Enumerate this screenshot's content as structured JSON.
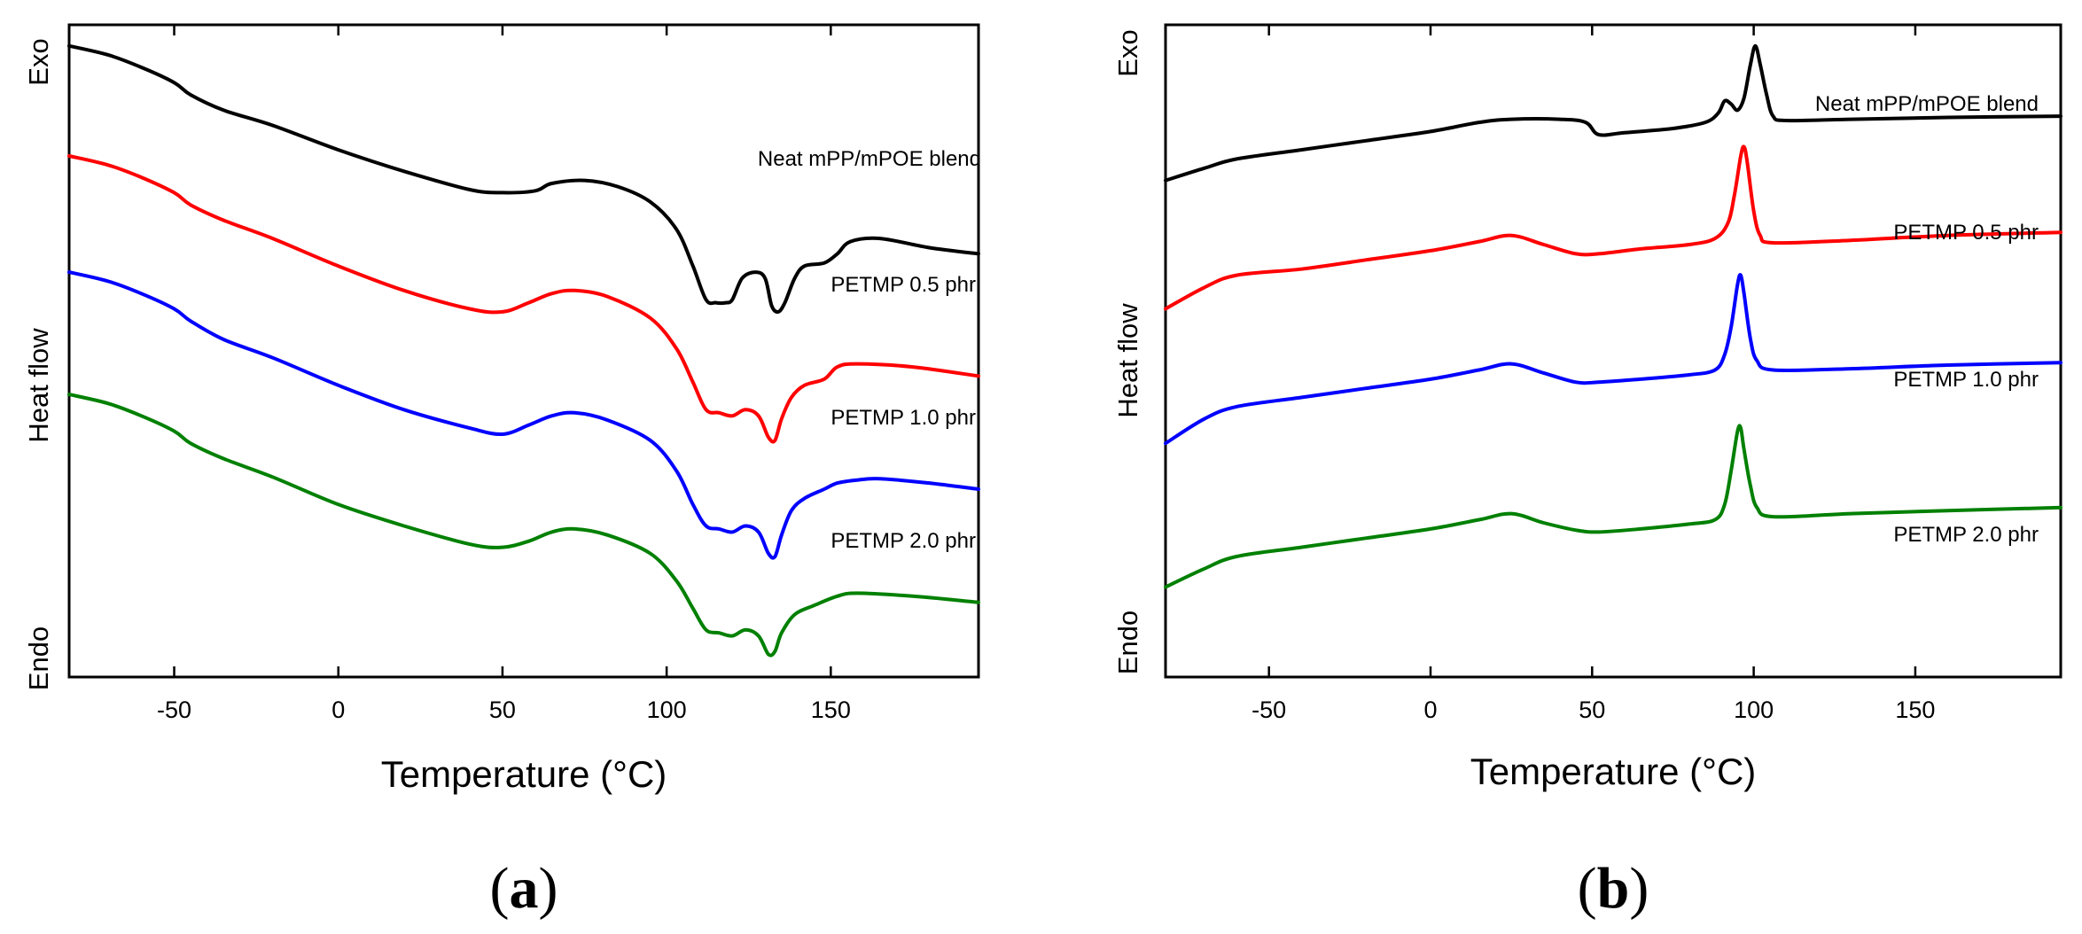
{
  "chart_data": [
    {
      "panel": "a",
      "type": "line",
      "xlabel": "Temperature (°C)",
      "xlim": [
        -82,
        195
      ],
      "xticks": [
        -50,
        0,
        50,
        100,
        150
      ],
      "ylabel": "Heat flow",
      "ylabel_top": "Exo",
      "ylabel_bottom": "Endo",
      "yticks_shown": false,
      "ylim": [
        0,
        100
      ],
      "series": [
        {
          "name": "Neat mPP/mPOE blend",
          "color": "#000000",
          "points": [
            [
              -82,
              98
            ],
            [
              -70,
              96.5
            ],
            [
              -60,
              94.5
            ],
            [
              -50,
              92
            ],
            [
              -45,
              90
            ],
            [
              -35,
              87.5
            ],
            [
              -20,
              85
            ],
            [
              0,
              81
            ],
            [
              20,
              77.5
            ],
            [
              40,
              74.5
            ],
            [
              50,
              74
            ],
            [
              60,
              74.3
            ],
            [
              65,
              75.5
            ],
            [
              75,
              76
            ],
            [
              85,
              75
            ],
            [
              95,
              72.5
            ],
            [
              103,
              68
            ],
            [
              108,
              62
            ],
            [
              112,
              56.5
            ],
            [
              115,
              56
            ],
            [
              118,
              56
            ],
            [
              120,
              56.5
            ],
            [
              123,
              60
            ],
            [
              127,
              61
            ],
            [
              130,
              60
            ],
            [
              132,
              55.5
            ],
            [
              134,
              54.5
            ],
            [
              136,
              56
            ],
            [
              139,
              60
            ],
            [
              142,
              62
            ],
            [
              148,
              62.5
            ],
            [
              152,
              64
            ],
            [
              156,
              66
            ],
            [
              165,
              66.5
            ],
            [
              180,
              65
            ],
            [
              195,
              64
            ]
          ]
        },
        {
          "name": "PETMP 0.5 phr",
          "color": "#ff0000",
          "points": [
            [
              -82,
              80
            ],
            [
              -70,
              78.5
            ],
            [
              -60,
              76.5
            ],
            [
              -50,
              74
            ],
            [
              -45,
              72
            ],
            [
              -35,
              69.5
            ],
            [
              -20,
              66.5
            ],
            [
              0,
              62
            ],
            [
              20,
              58
            ],
            [
              40,
              55
            ],
            [
              50,
              54.5
            ],
            [
              58,
              56
            ],
            [
              65,
              57.5
            ],
            [
              72,
              58
            ],
            [
              82,
              57
            ],
            [
              95,
              53.5
            ],
            [
              103,
              48.5
            ],
            [
              108,
              43
            ],
            [
              112,
              38.5
            ],
            [
              116,
              38
            ],
            [
              120,
              37.5
            ],
            [
              124,
              38.5
            ],
            [
              128,
              37.5
            ],
            [
              131,
              34
            ],
            [
              133,
              33.5
            ],
            [
              135,
              37
            ],
            [
              138,
              40.5
            ],
            [
              142,
              42.5
            ],
            [
              148,
              43.5
            ],
            [
              152,
              45.5
            ],
            [
              158,
              46
            ],
            [
              175,
              45.5
            ],
            [
              195,
              44
            ]
          ]
        },
        {
          "name": "PETMP 1.0 phr",
          "color": "#0000ff",
          "points": [
            [
              -82,
              61
            ],
            [
              -70,
              59.5
            ],
            [
              -60,
              57.5
            ],
            [
              -50,
              55
            ],
            [
              -45,
              53
            ],
            [
              -35,
              50
            ],
            [
              -20,
              47
            ],
            [
              0,
              42.5
            ],
            [
              20,
              38.5
            ],
            [
              40,
              35.5
            ],
            [
              50,
              34.5
            ],
            [
              58,
              36
            ],
            [
              65,
              37.5
            ],
            [
              72,
              38
            ],
            [
              82,
              36.8
            ],
            [
              95,
              33.5
            ],
            [
              103,
              28.5
            ],
            [
              108,
              23
            ],
            [
              112,
              19.5
            ],
            [
              116,
              19
            ],
            [
              120,
              18.5
            ],
            [
              124,
              19.5
            ],
            [
              128,
              18.5
            ],
            [
              131,
              15
            ],
            [
              133,
              14.5
            ],
            [
              135,
              18
            ],
            [
              138,
              22
            ],
            [
              142,
              24
            ],
            [
              148,
              25.5
            ],
            [
              152,
              26.5
            ],
            [
              158,
              27
            ],
            [
              165,
              27.2
            ],
            [
              180,
              26.5
            ],
            [
              195,
              25.5
            ]
          ]
        },
        {
          "name": "PETMP 2.0 phr",
          "color": "#008000",
          "points": [
            [
              -82,
              41
            ],
            [
              -70,
              39.5
            ],
            [
              -60,
              37.5
            ],
            [
              -50,
              35
            ],
            [
              -45,
              33
            ],
            [
              -35,
              30.5
            ],
            [
              -20,
              27.5
            ],
            [
              0,
              23
            ],
            [
              20,
              19.5
            ],
            [
              40,
              16.5
            ],
            [
              50,
              16
            ],
            [
              58,
              17
            ],
            [
              65,
              18.5
            ],
            [
              72,
              19
            ],
            [
              82,
              18
            ],
            [
              95,
              15
            ],
            [
              103,
              10.5
            ],
            [
              108,
              6
            ],
            [
              112,
              2.5
            ],
            [
              116,
              2
            ],
            [
              120,
              1.5
            ],
            [
              124,
              2.5
            ],
            [
              128,
              1.5
            ],
            [
              131,
              -1.5
            ],
            [
              133,
              -1
            ],
            [
              135,
              2
            ],
            [
              139,
              5
            ],
            [
              145,
              6.5
            ],
            [
              152,
              8
            ],
            [
              158,
              8.5
            ],
            [
              175,
              8
            ],
            [
              195,
              7
            ]
          ]
        }
      ],
      "panel_label": "(a)"
    },
    {
      "panel": "b",
      "type": "line",
      "xlabel": "Temperature (°C)",
      "xlim": [
        -82,
        195
      ],
      "xticks": [
        -50,
        0,
        50,
        100,
        150
      ],
      "ylabel": "Heat flow",
      "ylabel_top": "Exo",
      "ylabel_bottom": "Endo",
      "yticks_shown": false,
      "ylim": [
        0,
        100
      ],
      "series": [
        {
          "name": "Neat mPP/mPOE blend",
          "color": "#000000",
          "points": [
            [
              -82,
              76
            ],
            [
              -70,
              78
            ],
            [
              -60,
              79.5
            ],
            [
              -40,
              81
            ],
            [
              -20,
              82.5
            ],
            [
              0,
              84
            ],
            [
              15,
              85.5
            ],
            [
              25,
              86
            ],
            [
              40,
              86
            ],
            [
              48,
              85.5
            ],
            [
              52,
              83.5
            ],
            [
              60,
              83.8
            ],
            [
              75,
              84.5
            ],
            [
              85,
              85.5
            ],
            [
              89,
              87
            ],
            [
              91,
              89
            ],
            [
              93,
              88.5
            ],
            [
              95,
              87.5
            ],
            [
              97,
              89.5
            ],
            [
              99,
              95
            ],
            [
              100.5,
              98
            ],
            [
              102,
              95
            ],
            [
              104,
              90
            ],
            [
              106,
              86.5
            ],
            [
              110,
              85.8
            ],
            [
              130,
              86
            ],
            [
              160,
              86.3
            ],
            [
              195,
              86.5
            ]
          ]
        },
        {
          "name": "PETMP 0.5 phr",
          "color": "#ff0000",
          "points": [
            [
              -82,
              55
            ],
            [
              -70,
              58.5
            ],
            [
              -60,
              60.5
            ],
            [
              -40,
              61.5
            ],
            [
              -20,
              63
            ],
            [
              0,
              64.5
            ],
            [
              15,
              66
            ],
            [
              25,
              67
            ],
            [
              35,
              65.5
            ],
            [
              45,
              64
            ],
            [
              52,
              64
            ],
            [
              65,
              64.8
            ],
            [
              80,
              65.5
            ],
            [
              88,
              66.5
            ],
            [
              92,
              69
            ],
            [
              94,
              73.5
            ],
            [
              96,
              80
            ],
            [
              97,
              81.5
            ],
            [
              98,
              79
            ],
            [
              100,
              71
            ],
            [
              102,
              67
            ],
            [
              106,
              65.8
            ],
            [
              130,
              66.2
            ],
            [
              160,
              67
            ],
            [
              195,
              67.5
            ]
          ]
        },
        {
          "name": "PETMP 1.0 phr",
          "color": "#0000ff",
          "points": [
            [
              -82,
              33
            ],
            [
              -70,
              37
            ],
            [
              -60,
              39
            ],
            [
              -40,
              40.5
            ],
            [
              -20,
              42
            ],
            [
              0,
              43.5
            ],
            [
              15,
              45
            ],
            [
              25,
              46
            ],
            [
              35,
              44.5
            ],
            [
              45,
              43
            ],
            [
              52,
              43
            ],
            [
              65,
              43.5
            ],
            [
              80,
              44.2
            ],
            [
              88,
              45
            ],
            [
              91,
              47.5
            ],
            [
              93,
              52
            ],
            [
              95,
              59
            ],
            [
              96,
              60.5
            ],
            [
              97,
              57.5
            ],
            [
              99,
              50
            ],
            [
              101,
              46.5
            ],
            [
              106,
              45
            ],
            [
              130,
              45.2
            ],
            [
              160,
              45.8
            ],
            [
              195,
              46.2
            ]
          ]
        },
        {
          "name": "PETMP 2.0 phr",
          "color": "#008000",
          "points": [
            [
              -82,
              9.5
            ],
            [
              -70,
              12.5
            ],
            [
              -60,
              14.5
            ],
            [
              -40,
              16
            ],
            [
              -20,
              17.5
            ],
            [
              0,
              19
            ],
            [
              15,
              20.5
            ],
            [
              25,
              21.5
            ],
            [
              35,
              20
            ],
            [
              45,
              18.8
            ],
            [
              52,
              18.5
            ],
            [
              65,
              19
            ],
            [
              80,
              19.8
            ],
            [
              88,
              20.5
            ],
            [
              91,
              23
            ],
            [
              93,
              28.5
            ],
            [
              95,
              35
            ],
            [
              96,
              35.5
            ],
            [
              97,
              32
            ],
            [
              99,
              26
            ],
            [
              101,
              22.5
            ],
            [
              106,
              21
            ],
            [
              130,
              21.5
            ],
            [
              160,
              22
            ],
            [
              195,
              22.5
            ]
          ]
        }
      ],
      "panel_label": "(b)"
    }
  ]
}
